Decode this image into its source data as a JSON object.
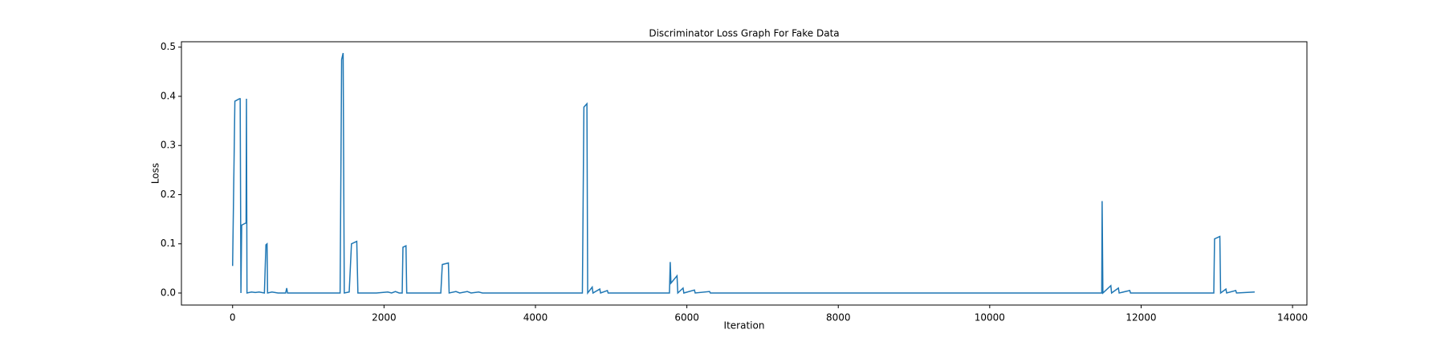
{
  "chart_data": {
    "type": "line",
    "title": "Discriminator Loss Graph For Fake Data",
    "x_label": "Iteration",
    "y_label": "Loss",
    "x": [
      0,
      30,
      90,
      100,
      110,
      120,
      170,
      178,
      183,
      190,
      250,
      300,
      350,
      420,
      440,
      455,
      462,
      520,
      600,
      700,
      715,
      725,
      900,
      1400,
      1420,
      1440,
      1460,
      1475,
      1540,
      1570,
      1640,
      1655,
      1900,
      2050,
      2100,
      2150,
      2200,
      2240,
      2250,
      2290,
      2300,
      2750,
      2770,
      2850,
      2860,
      2950,
      3000,
      3100,
      3150,
      3250,
      3300,
      4620,
      4640,
      4680,
      4690,
      4750,
      4760,
      4850,
      4860,
      4950,
      4960,
      5770,
      5780,
      5790,
      5870,
      5880,
      5950,
      5960,
      6100,
      6110,
      6300,
      6310,
      11480,
      11485,
      11495,
      11600,
      11610,
      11700,
      11710,
      11850,
      11860,
      12960,
      12970,
      13040,
      13050,
      13120,
      13130,
      13250,
      13260,
      13500
    ],
    "series": [
      {
        "name": "Loss",
        "color": "#1f77b4",
        "values": [
          0.055,
          0.39,
          0.395,
          0.395,
          0,
          0.138,
          0.142,
          0.142,
          0.395,
          0,
          0.002,
          0.001,
          0.002,
          0,
          0.098,
          0.1,
          0,
          0.002,
          0,
          0,
          0.01,
          0,
          0,
          0,
          0,
          0.475,
          0.488,
          0,
          0.002,
          0.1,
          0.105,
          0,
          0,
          0.002,
          0,
          0.003,
          0,
          0,
          0.093,
          0.096,
          0,
          0,
          0.058,
          0.061,
          0,
          0.003,
          0,
          0.003,
          0,
          0.002,
          0,
          0,
          0.378,
          0.385,
          0,
          0.012,
          0,
          0.008,
          0,
          0.005,
          0,
          0,
          0.063,
          0.02,
          0.035,
          0,
          0.01,
          0,
          0.006,
          0,
          0.003,
          0,
          0,
          0.187,
          0,
          0.015,
          0,
          0.01,
          0,
          0.005,
          0,
          0,
          0.11,
          0.115,
          0,
          0.008,
          0,
          0.005,
          0,
          0.002
        ]
      }
    ],
    "xlim": [
      -676,
      14190
    ],
    "ylim": [
      -0.0245,
      0.511
    ],
    "xticks": [
      0,
      2000,
      4000,
      6000,
      8000,
      10000,
      12000,
      14000
    ],
    "yticks": [
      {
        "value": 0,
        "label": "0.0"
      },
      0.1,
      0.2,
      0.3,
      0.4,
      0.5
    ]
  }
}
